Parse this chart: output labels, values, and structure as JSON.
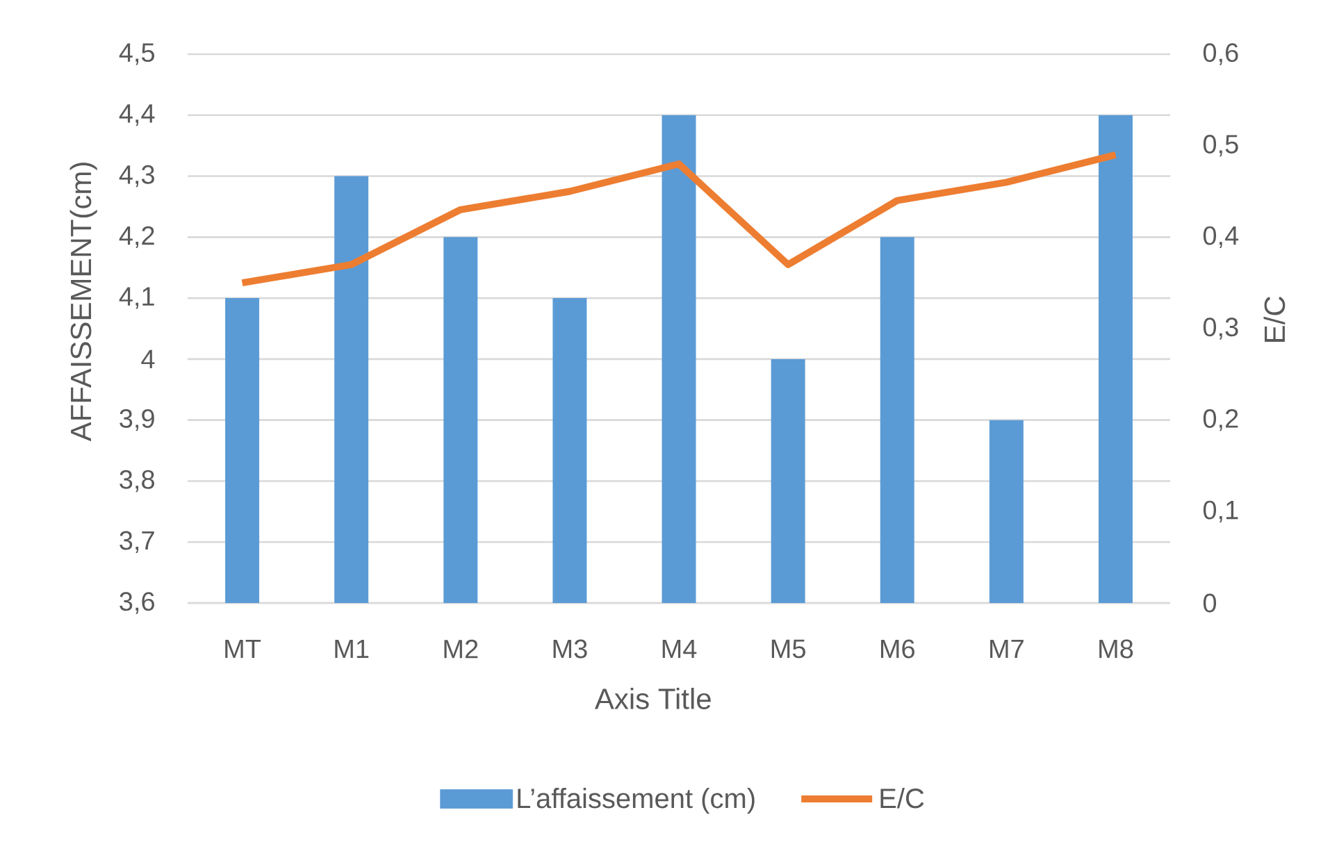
{
  "chart_data": {
    "type": "bar",
    "categories": [
      "MT",
      "M1",
      "M2",
      "M3",
      "M4",
      "M5",
      "M6",
      "M7",
      "M8"
    ],
    "xlabel": "Axis Title",
    "ylabel": "AFFAISSEMENT(cm)",
    "y2label": "E/C",
    "series": [
      {
        "name": "L’affaissement (cm)",
        "color": "#5b9bd5",
        "values": [
          4.1,
          4.3,
          4.2,
          4.1,
          4.4,
          4.0,
          4.2,
          3.9,
          4.4
        ]
      },
      {
        "name": "E/C",
        "type": "line",
        "axis": "y2",
        "color": "#ed7d31",
        "values": [
          0.35,
          0.37,
          0.43,
          0.45,
          0.48,
          0.37,
          0.44,
          0.46,
          0.49
        ]
      }
    ],
    "ylim": [
      3.6,
      4.5
    ],
    "yticks": [
      {
        "value": 3.6,
        "label": "3,6"
      },
      {
        "value": 3.7,
        "label": "3,7"
      },
      {
        "value": 3.8,
        "label": "3,8"
      },
      {
        "value": 3.9,
        "label": "3,9"
      },
      4,
      {
        "value": 4.1,
        "label": "4,1"
      },
      {
        "value": 4.2,
        "label": "4,2"
      },
      {
        "value": 4.3,
        "label": "4,3"
      },
      {
        "value": 4.4,
        "label": "4,4"
      },
      {
        "value": 4.5,
        "label": "4,5"
      }
    ],
    "y2lim": [
      0,
      0.6
    ],
    "y2ticks": [
      0,
      {
        "value": 0.1,
        "label": "0,1"
      },
      {
        "value": 0.2,
        "label": "0,2"
      },
      {
        "value": 0.3,
        "label": "0,3"
      },
      {
        "value": 0.4,
        "label": "0,4"
      },
      {
        "value": 0.5,
        "label": "0,5"
      },
      {
        "value": 0.6,
        "label": "0,6"
      }
    ],
    "grid": "y",
    "legend": "bottom"
  }
}
